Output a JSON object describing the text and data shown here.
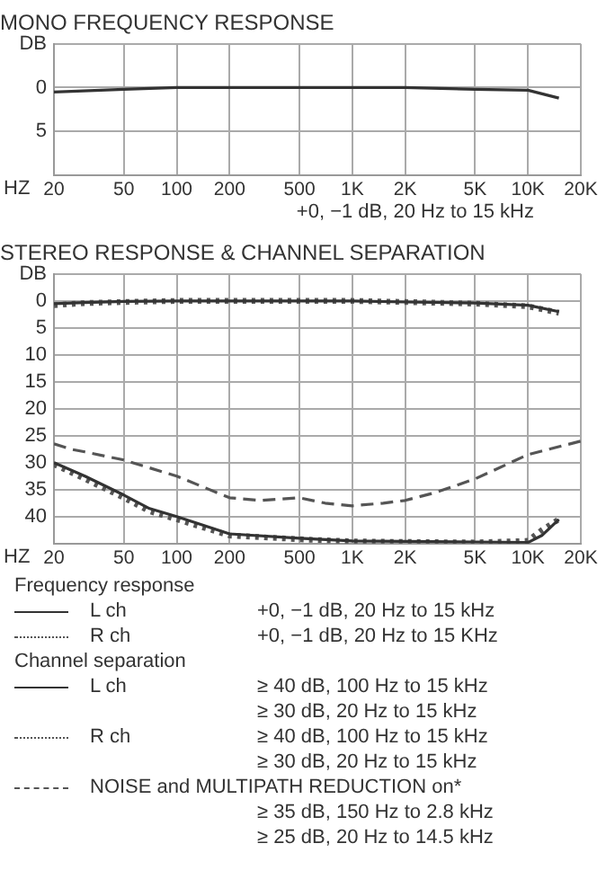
{
  "chart_data": [
    {
      "type": "line",
      "title": "MONO FREQUENCY RESPONSE",
      "xlabel": "HZ",
      "log": "x",
      "xlim": [
        20,
        20000
      ],
      "xticks": [
        20,
        50,
        100,
        200,
        500,
        {
          "value": 1000,
          "label": "1K"
        },
        {
          "value": 2000,
          "label": "2K"
        },
        {
          "value": 5000,
          "label": "5K"
        },
        {
          "value": 10000,
          "label": "10K"
        },
        {
          "value": 20000,
          "label": "20K"
        }
      ],
      "ylim": [
        10,
        -5
      ],
      "yticks": [
        {
          "value": -5,
          "label": "DB"
        },
        0,
        5,
        {
          "value": 10,
          "label": null
        }
      ],
      "grid": true,
      "legend": false,
      "annotations": [
        "+0, −1 dB, 20 Hz to 15 kHz"
      ],
      "series": [
        {
          "color": "#333333",
          "line_style": "solid",
          "x": [
            20,
            50,
            100,
            500,
            2000,
            5000,
            10000,
            15000
          ],
          "values": [
            0.5,
            0.2,
            0,
            0,
            0,
            0.2,
            0.3,
            1.2
          ]
        }
      ]
    },
    {
      "type": "line",
      "title": "STEREO RESPONSE & CHANNEL SEPARATION",
      "xlabel": "HZ",
      "log": "x",
      "xlim": [
        20,
        20000
      ],
      "xticks": [
        20,
        50,
        100,
        200,
        500,
        {
          "value": 1000,
          "label": "1K"
        },
        {
          "value": 2000,
          "label": "2K"
        },
        {
          "value": 5000,
          "label": "5K"
        },
        {
          "value": 10000,
          "label": "10K"
        },
        {
          "value": 20000,
          "label": "20K"
        }
      ],
      "ylim": [
        45,
        -5
      ],
      "yticks": [
        {
          "value": -5,
          "label": "DB"
        },
        0,
        5,
        10,
        15,
        20,
        25,
        30,
        35,
        40,
        {
          "value": 45,
          "label": null
        }
      ],
      "grid": true,
      "legend": "bottom",
      "annotations": [
        "Frequency response",
        "+0, −1 dB, 20 Hz to 15 kHz",
        "+0, −1 dB, 20 Hz to 15 KHz",
        "Channel separation",
        "≥ 40 dB, 100 Hz to 15 kHz",
        "≥ 30 dB, 20 Hz to 15 kHz",
        "≥ 40 dB, 100 Hz to 15 kHz",
        "≥ 30 dB, 20 Hz to 15 kHz",
        "≥ 35 dB, 150 Hz to 2.8 kHz",
        "≥ 25 dB, 20 Hz to 14.5 kHz"
      ],
      "series": [
        {
          "name": "L ch",
          "color": "#333333",
          "line_style": "solid",
          "x": [
            20,
            30,
            50,
            100,
            1000,
            2000,
            5000,
            10000,
            15000
          ],
          "values": [
            0.5,
            0.3,
            0.1,
            0,
            0,
            0.2,
            0.4,
            0.8,
            2
          ]
        },
        {
          "name": "R ch",
          "color": "#555555",
          "line_style": "dotted",
          "x": [
            20,
            30,
            50,
            100,
            1000,
            2000,
            5000,
            10000,
            15000
          ],
          "values": [
            0.8,
            0.4,
            0.2,
            0,
            0,
            0.2,
            0.5,
            1,
            2.2
          ]
        },
        {
          "name": "L ch",
          "color": "#333333",
          "line_style": "solid",
          "x": [
            20,
            30,
            50,
            70,
            100,
            200,
            500,
            1000,
            2000,
            5000,
            10000,
            12000,
            15000
          ],
          "values": [
            30,
            32.5,
            36,
            38.5,
            40,
            43.2,
            44,
            44.5,
            44.6,
            44.7,
            44.8,
            43.5,
            40.5
          ]
        },
        {
          "name": "R ch",
          "color": "#555555",
          "line_style": "dotted",
          "x": [
            20,
            30,
            50,
            70,
            100,
            200,
            500,
            1000,
            2000,
            5000,
            10000,
            12000,
            15000
          ],
          "values": [
            30.3,
            33,
            36.5,
            39,
            40.5,
            43.5,
            44.2,
            44.6,
            44.7,
            44.8,
            44.5,
            42.5,
            40.5
          ]
        },
        {
          "name": "NOISE and MULTIPATH REDUCTION on*",
          "color": "#555555",
          "line_style": "dashed",
          "x": [
            20,
            25,
            30,
            50,
            100,
            200,
            300,
            500,
            700,
            1000,
            1500,
            2000,
            3000,
            5000,
            10000,
            20000
          ],
          "values": [
            26.5,
            27.5,
            28,
            29.5,
            32.5,
            36.5,
            37,
            36.5,
            37.5,
            38,
            37.5,
            37,
            35.5,
            33,
            28.5,
            26
          ]
        }
      ]
    }
  ]
}
